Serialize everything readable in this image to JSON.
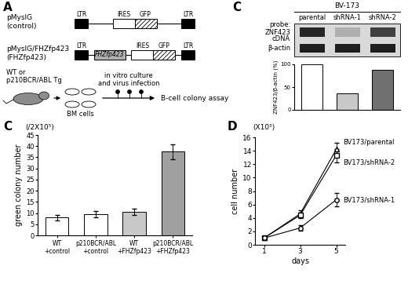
{
  "diagram": {
    "panel": "A",
    "constructs": [
      {
        "name": "pMysIG",
        "subtitle": "(control)",
        "elements": [
          {
            "kind": "ltr",
            "label": "LTR"
          },
          {
            "kind": "ires",
            "label": "IRES"
          },
          {
            "kind": "gfp",
            "label": "GFP"
          },
          {
            "kind": "ltr",
            "label": "LTR"
          }
        ]
      },
      {
        "name": "pMysIG/FHZfp423",
        "subtitle": "(FHZfp423)",
        "elements": [
          {
            "kind": "ltr",
            "label": "LTR"
          },
          {
            "kind": "insert",
            "label": "FHZfp423"
          },
          {
            "kind": "ires",
            "label": "IRES"
          },
          {
            "kind": "gfp",
            "label": "GFP"
          },
          {
            "kind": "ltr",
            "label": "LTR"
          }
        ]
      }
    ],
    "workflow": {
      "source": "WT or\np210BCR/ABL Tg",
      "steps": [
        "BM cells",
        "in vitro culture\nand virus infection",
        "B-cell colony assay"
      ]
    }
  },
  "blot": {
    "header": "BV-173",
    "rows": [
      "probe:\nZNF423\ncDNA",
      "β-actin"
    ]
  },
  "chart_data": [
    {
      "panel": "C",
      "type": "bar",
      "ylabel": "ZNF423/β-actin (%)",
      "categories": [
        "parental",
        "shRNA-1",
        "shRNA-2"
      ],
      "values": [
        100,
        37,
        88
      ],
      "colors": [
        "#ffffff",
        "#c8c8c8",
        "#707070"
      ],
      "ylim": [
        0,
        100
      ],
      "yticks": [
        0,
        50,
        100
      ],
      "tick_labels": "y"
    },
    {
      "panel": "C",
      "type": "bar",
      "ylabel": "green colony number",
      "unit_label": "(/2X10⁵)",
      "categories": [
        "WT\n+control",
        "p210BCR/ABL\n+control",
        "WT\n+FHZfp423",
        "p210BCR/ABL\n+FHZfp423"
      ],
      "values": [
        8,
        9.5,
        10.5,
        37.5
      ],
      "errors": [
        1.3,
        1.3,
        1.5,
        3.3
      ],
      "colors": [
        "#ffffff",
        "#ffffff",
        "#c8c8c8",
        "#a0a0a0"
      ],
      "ylim": [
        0,
        45
      ],
      "yticks": [
        0,
        5,
        10,
        15,
        20,
        25,
        30,
        35,
        40,
        45
      ]
    },
    {
      "panel": "D",
      "type": "line",
      "ylabel": "cell number",
      "unit_label": "(X10⁵)",
      "xlabel": "days",
      "x": [
        1,
        3,
        5
      ],
      "xlim": [
        0.5,
        5.5
      ],
      "xticks": [
        1,
        3,
        5
      ],
      "ylim": [
        0,
        16
      ],
      "yticks": [
        0,
        2,
        4,
        6,
        8,
        10,
        12,
        14,
        16
      ],
      "series": [
        {
          "name": "BV173/parental",
          "color": "#000000",
          "marker": "triangle",
          "values": [
            1,
            4.6,
            14.2
          ],
          "errors": [
            0.1,
            0.5,
            1.0
          ]
        },
        {
          "name": "BV173/shRNA-2",
          "color": "#000000",
          "marker": "square",
          "values": [
            1,
            4.4,
            13.3
          ],
          "errors": [
            0.1,
            0.4,
            1.0
          ]
        },
        {
          "name": "BV173/shRNA-1",
          "color": "#000000",
          "marker": "circle",
          "values": [
            1,
            2.5,
            6.7
          ],
          "errors": [
            0.1,
            0.4,
            1.0
          ]
        }
      ]
    }
  ]
}
